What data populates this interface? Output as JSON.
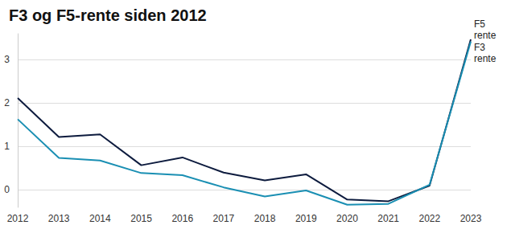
{
  "chart_data": {
    "type": "line",
    "title": "F3 og F5-rente siden 2012",
    "categories": [
      "2012",
      "2013",
      "2014",
      "2015",
      "2016",
      "2017",
      "2018",
      "2019",
      "2020",
      "2021",
      "2022",
      "2023"
    ],
    "series": [
      {
        "name": "F5 rente",
        "color": "#0d1b3e",
        "values": [
          2.12,
          1.22,
          1.28,
          0.57,
          0.75,
          0.4,
          0.22,
          0.36,
          -0.22,
          -0.26,
          0.1,
          3.47
        ]
      },
      {
        "name": "F3 rente",
        "color": "#1a8fb3",
        "values": [
          1.63,
          0.74,
          0.68,
          0.39,
          0.34,
          0.06,
          -0.15,
          -0.01,
          -0.34,
          -0.32,
          0.12,
          3.42
        ]
      }
    ],
    "ylim": [
      -0.4,
      3.6
    ],
    "yticks": [
      0,
      1,
      2,
      3
    ],
    "grid": true
  }
}
